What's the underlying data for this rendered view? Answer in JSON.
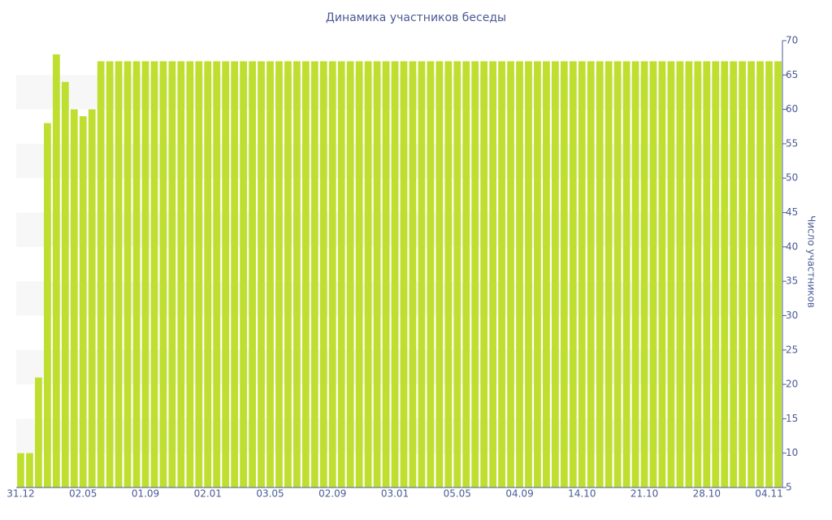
{
  "chart_data": {
    "type": "bar",
    "title": "Динамика участников беседы",
    "y_label": "Число участников",
    "categories": [
      "31.12",
      null,
      null,
      null,
      null,
      null,
      null,
      "02.05",
      null,
      null,
      null,
      null,
      null,
      null,
      "01.09",
      null,
      null,
      null,
      null,
      null,
      null,
      "02.01",
      null,
      null,
      null,
      null,
      null,
      null,
      "03.05",
      null,
      null,
      null,
      null,
      null,
      null,
      "02.09",
      null,
      null,
      null,
      null,
      null,
      null,
      "03.01",
      null,
      null,
      null,
      null,
      null,
      null,
      "05.05",
      null,
      null,
      null,
      null,
      null,
      null,
      "04.09",
      null,
      null,
      null,
      null,
      null,
      null,
      "14.10",
      null,
      null,
      null,
      null,
      null,
      null,
      "21.10",
      null,
      null,
      null,
      null,
      null,
      null,
      "28.10",
      null,
      null,
      null,
      null,
      null,
      null,
      "04.11",
      null
    ],
    "values": [
      10,
      10,
      21,
      58,
      68,
      64,
      60,
      59,
      60,
      67,
      67,
      67,
      67,
      67,
      67,
      67,
      67,
      67,
      67,
      67,
      67,
      67,
      67,
      67,
      67,
      67,
      67,
      67,
      67,
      67,
      67,
      67,
      67,
      67,
      67,
      67,
      67,
      67,
      67,
      67,
      67,
      67,
      67,
      67,
      67,
      67,
      67,
      67,
      67,
      67,
      67,
      67,
      67,
      67,
      67,
      67,
      67,
      67,
      67,
      67,
      67,
      67,
      67,
      67,
      67,
      67,
      67,
      67,
      67,
      67,
      67,
      67,
      67,
      67,
      67,
      67,
      67,
      67,
      67,
      67,
      67,
      67,
      67,
      67,
      67,
      67
    ],
    "color": "#bedf2f",
    "ylim": [
      5,
      70
    ],
    "yticks": [
      5,
      10,
      15,
      20,
      25,
      30,
      35,
      40,
      45,
      50,
      55,
      60,
      65,
      70
    ],
    "y_axis_side": "right",
    "grid": true
  }
}
